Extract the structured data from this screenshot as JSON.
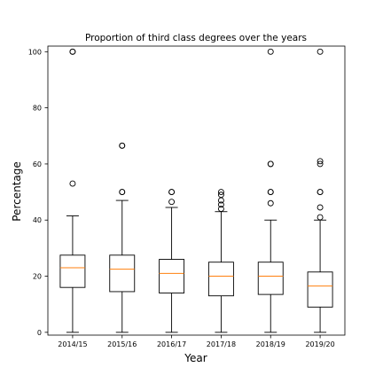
{
  "chart_data": {
    "type": "boxplot",
    "title": "Proportion of third class degrees over the years",
    "xlabel": "Year",
    "ylabel": "Percentage",
    "ylim": [
      -1,
      102
    ],
    "yticks": [
      0,
      20,
      40,
      60,
      80,
      100
    ],
    "categories": [
      "2014/15",
      "2015/16",
      "2016/17",
      "2017/18",
      "2018/19",
      "2019/20"
    ],
    "boxes": [
      {
        "category": "2014/15",
        "whisker_low": 0,
        "q1": 16,
        "median": 23,
        "q3": 27.5,
        "whisker_high": 41.5,
        "outliers": [
          53,
          100,
          100
        ]
      },
      {
        "category": "2015/16",
        "whisker_low": 0,
        "q1": 14.5,
        "median": 22.5,
        "q3": 27.5,
        "whisker_high": 47,
        "outliers": [
          50,
          50,
          66.5,
          66.5
        ]
      },
      {
        "category": "2016/17",
        "whisker_low": 0,
        "q1": 14,
        "median": 21,
        "q3": 26,
        "whisker_high": 44.5,
        "outliers": [
          46.5,
          50,
          50
        ]
      },
      {
        "category": "2017/18",
        "whisker_low": 0,
        "q1": 13,
        "median": 20,
        "q3": 25,
        "whisker_high": 43,
        "outliers": [
          44,
          45.5,
          47,
          49,
          50
        ]
      },
      {
        "category": "2018/19",
        "whisker_low": 0,
        "q1": 13.5,
        "median": 20,
        "q3": 25,
        "whisker_high": 40,
        "outliers": [
          46,
          50,
          50,
          60,
          60,
          100
        ]
      },
      {
        "category": "2019/20",
        "whisker_low": 0,
        "q1": 9,
        "median": 16.5,
        "q3": 21.5,
        "whisker_high": 40,
        "outliers": [
          41,
          44.5,
          50,
          50,
          60,
          61,
          100
        ]
      }
    ],
    "colors": {
      "box": "#000000",
      "median": "#ff7f0e",
      "outlier": "#000000",
      "background": "#ffffff"
    }
  }
}
